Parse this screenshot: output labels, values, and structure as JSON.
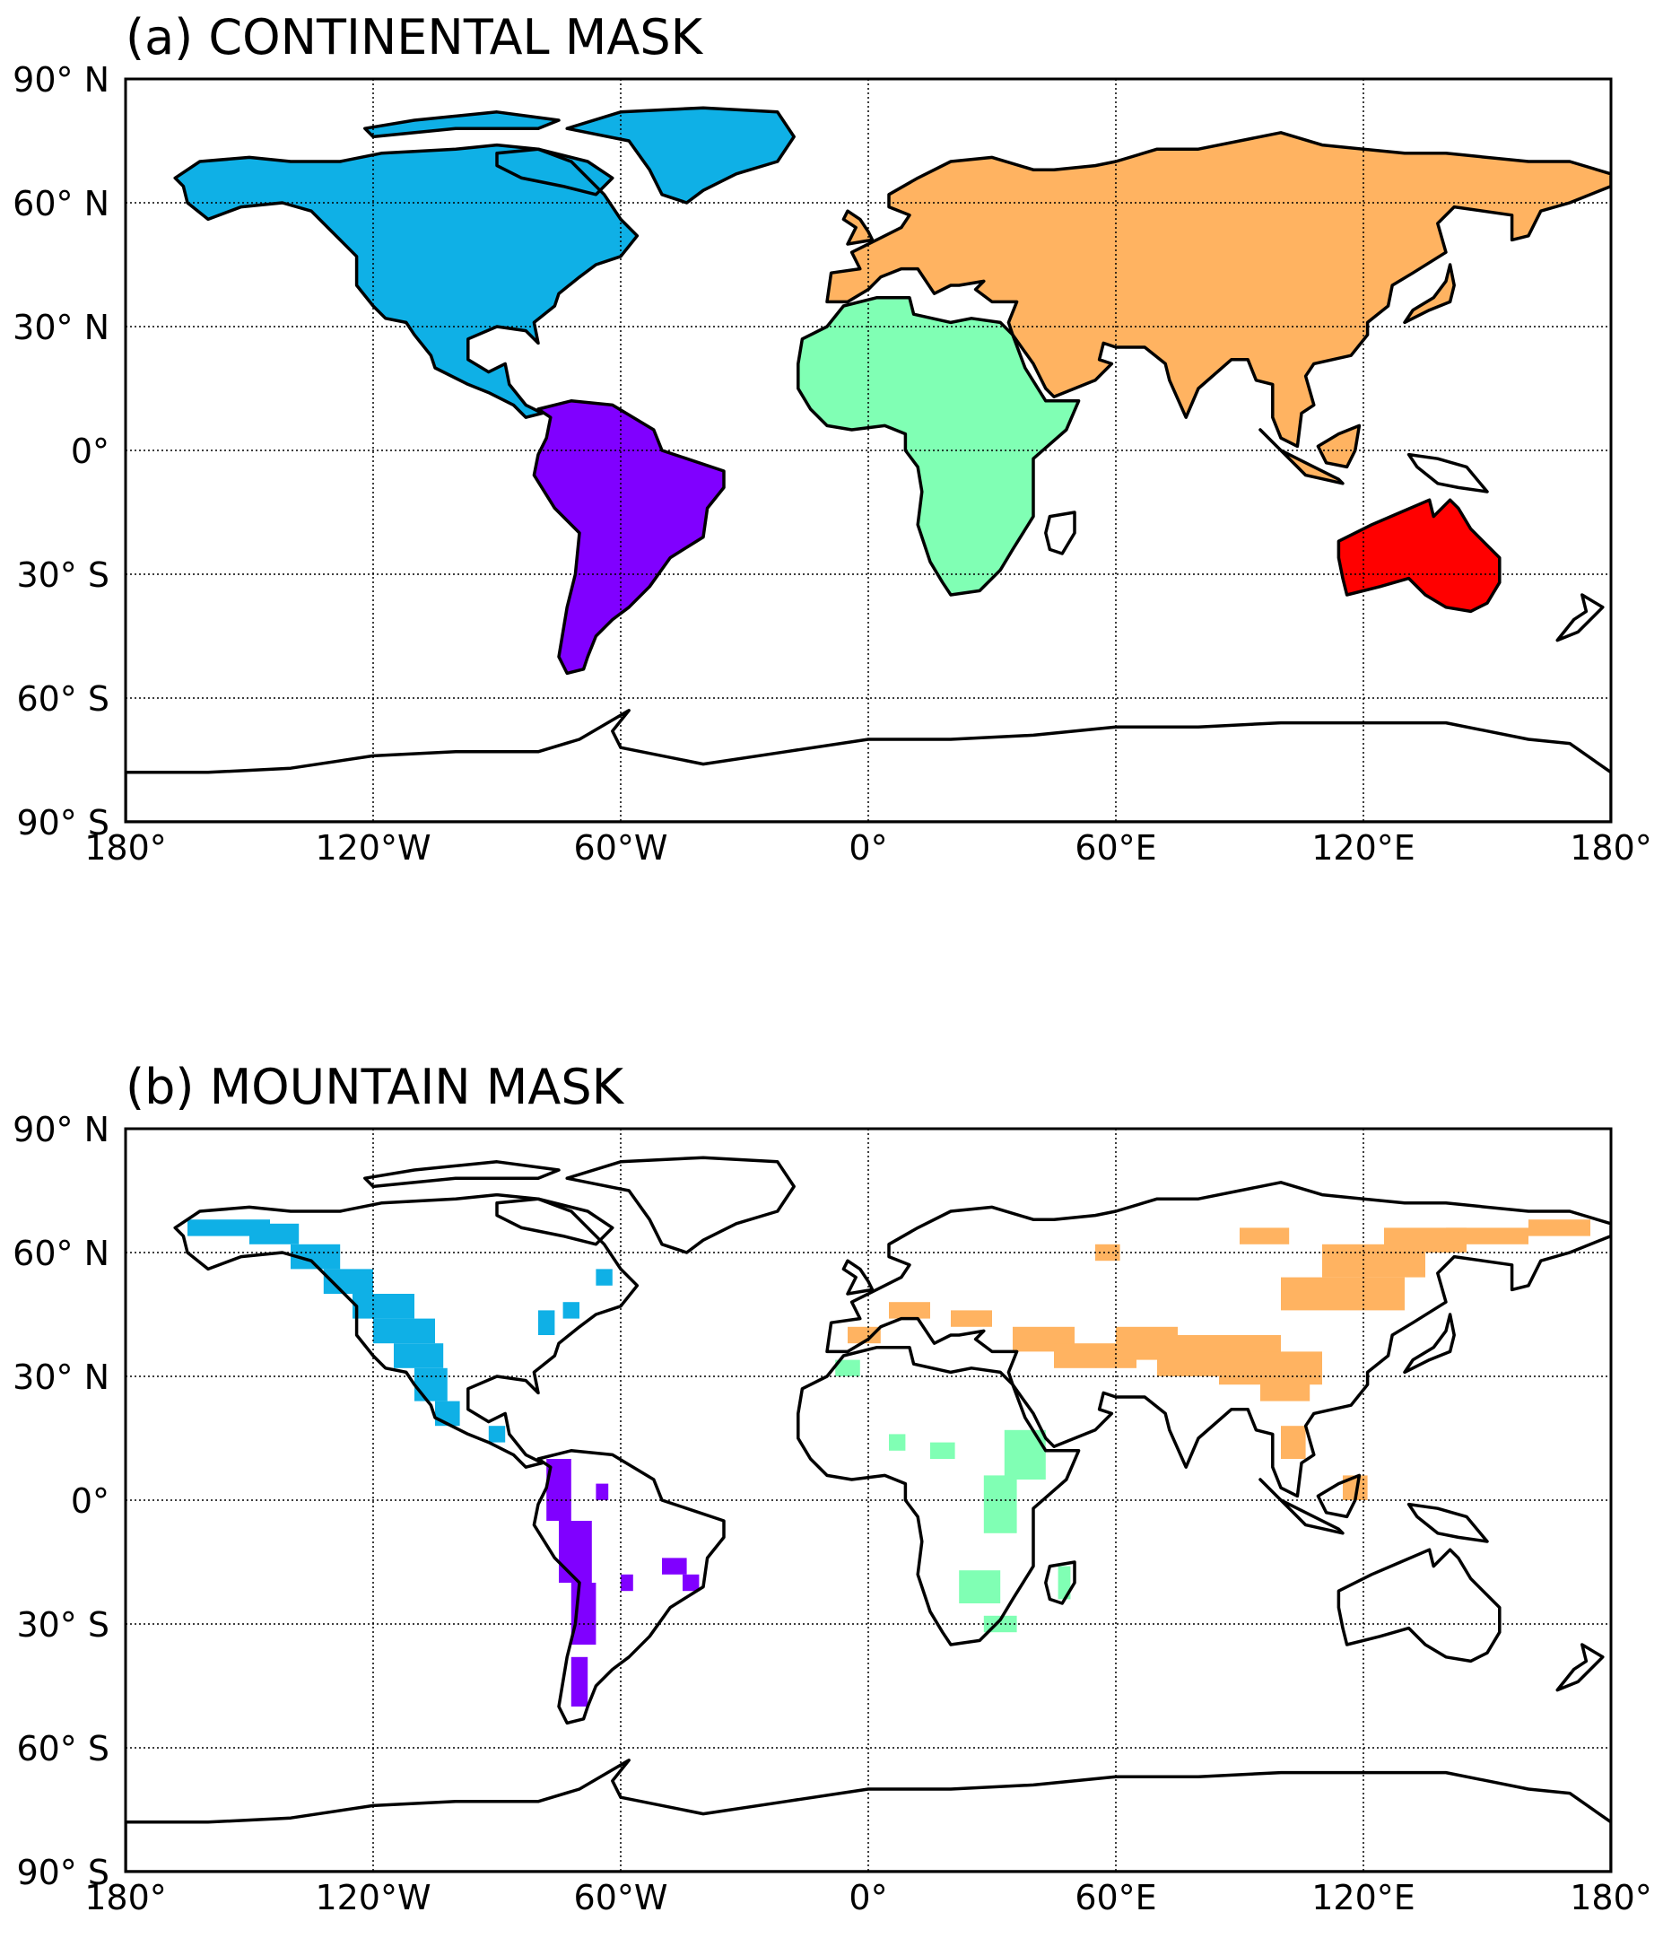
{
  "panels": [
    {
      "title": "(a) CONTINENTAL MASK",
      "type": "continental",
      "region_colors": {
        "north_america": "#0fb0e6",
        "south_america": "#8000ff",
        "europe_asia": "#ffb361",
        "africa": "#80ffb4",
        "australia": "#ff0000"
      }
    },
    {
      "title": "(b) MOUNTAIN MASK",
      "type": "mountain",
      "region_colors": {
        "north_america": "#0fb0e6",
        "south_america": "#8000ff",
        "europe_asia": "#ffb361",
        "africa": "#80ffb4",
        "australia": "#ff0000"
      }
    }
  ],
  "axes": {
    "xticks": [
      "180°",
      "120°W",
      "60°W",
      "0°",
      "60°E",
      "120°E",
      "180°"
    ],
    "yticks": [
      "90° N",
      "60° N",
      "30° N",
      "0°",
      "30° S",
      "60° S",
      "90° S"
    ],
    "lon_range": [
      -180,
      180
    ],
    "lat_range": [
      -90,
      90
    ],
    "grid": true,
    "grid_style": "dotted"
  },
  "colors": {
    "coastline": "#000000",
    "grid": "#000000"
  }
}
